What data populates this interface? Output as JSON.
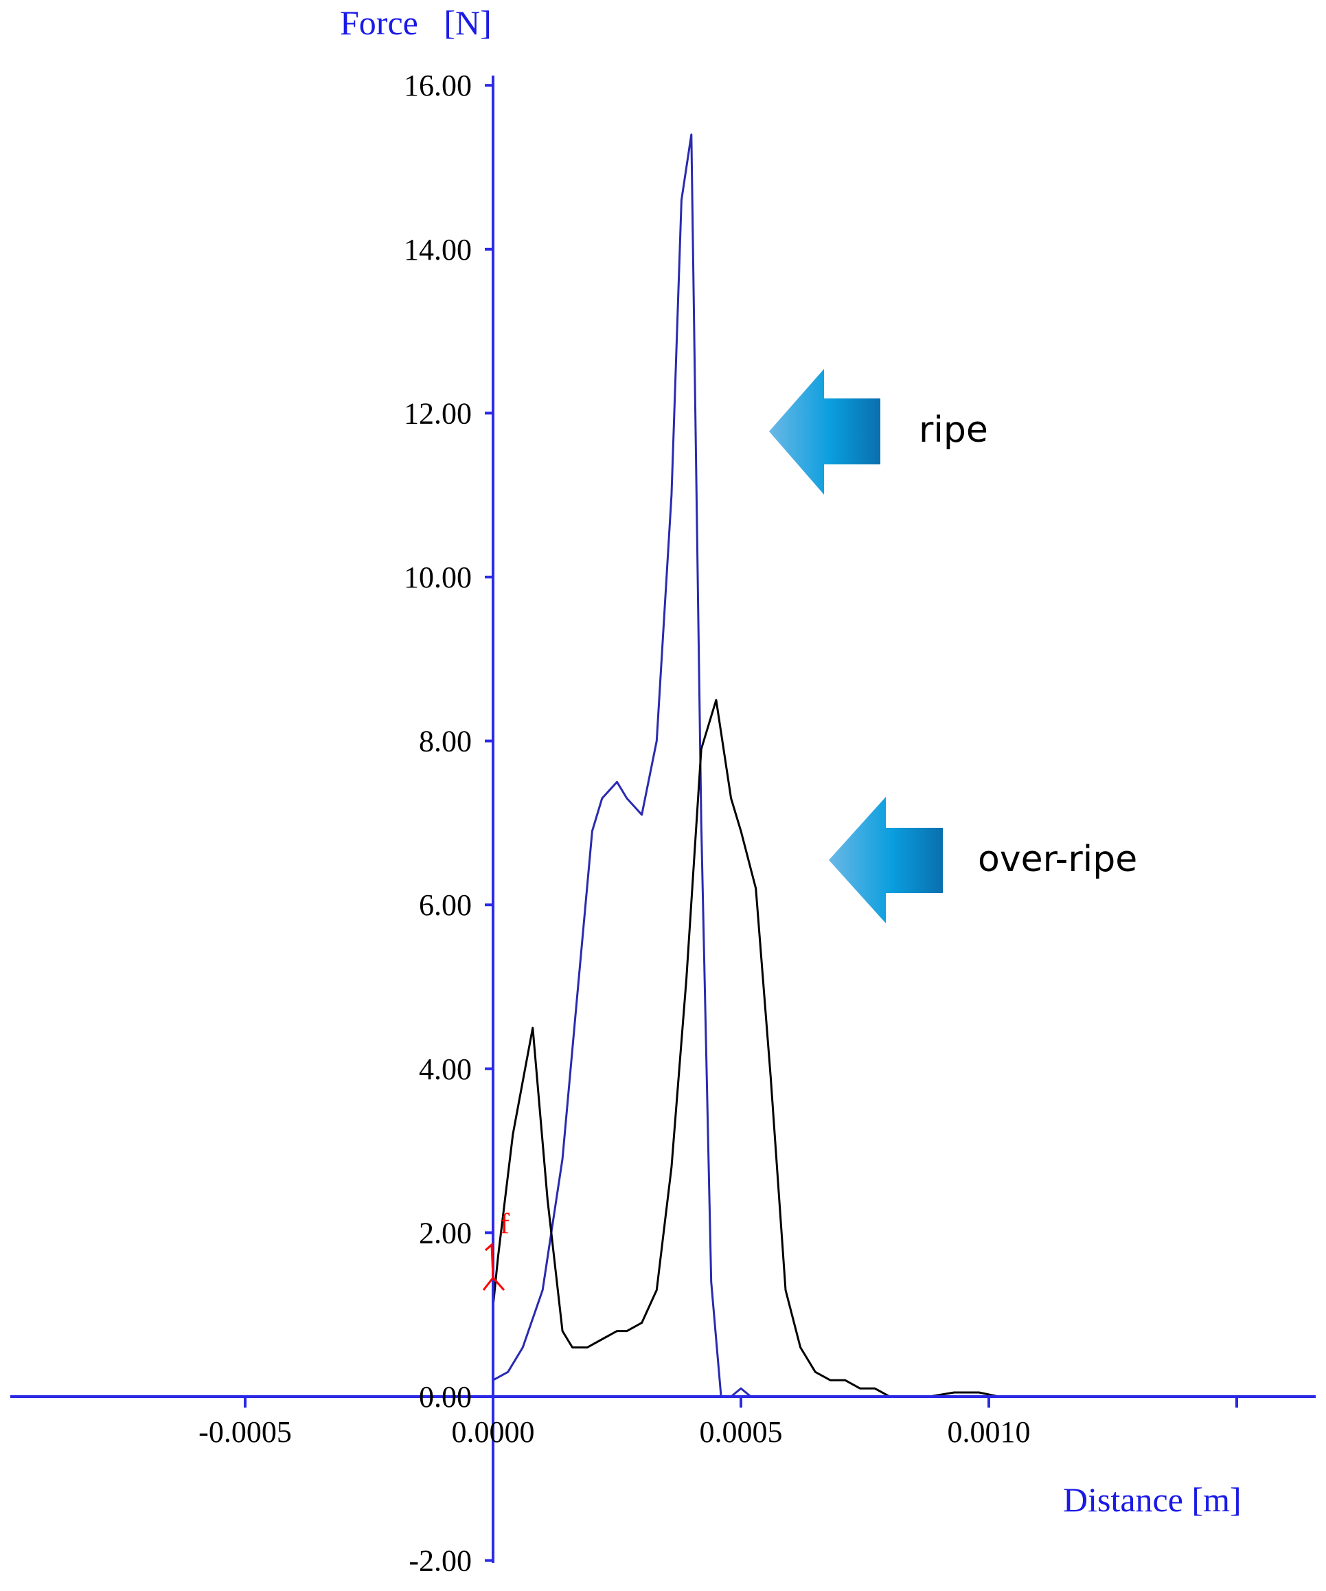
{
  "chart_data": {
    "type": "line",
    "xlabel": "Distance [m]",
    "ylabel": "Force   [N]",
    "xlim": [
      -0.000975,
      0.001665
    ],
    "ylim": [
      -2,
      16
    ],
    "x_ticks": [
      -0.0005,
      0.0,
      0.0005,
      0.001
    ],
    "x_tick_labels": [
      "-0.0005",
      "0.0000",
      "0.0005",
      "0.0010"
    ],
    "y_ticks": [
      -2,
      0,
      2,
      4,
      6,
      8,
      10,
      12,
      14,
      16
    ],
    "y_tick_labels": [
      "-2.00",
      "0.00",
      "2.00",
      "4.00",
      "6.00",
      "8.00",
      "10.00",
      "12.00",
      "14.00",
      "16.00"
    ],
    "grid": false,
    "series": [
      {
        "color": "#2a2ab0",
        "x": [
          0.0,
          3e-05,
          6e-05,
          0.0001,
          0.00014,
          0.00017,
          0.0002,
          0.00022,
          0.00025,
          0.00027,
          0.0003,
          0.00033,
          0.00036,
          0.00038,
          0.0004,
          0.00042,
          0.00044,
          0.00046,
          0.00048,
          0.0005,
          0.00052,
          0.00055
        ],
        "y": [
          0.2,
          0.3,
          0.6,
          1.3,
          2.9,
          4.9,
          6.9,
          7.3,
          7.5,
          7.3,
          7.1,
          8.0,
          11.0,
          14.6,
          15.4,
          7.0,
          1.4,
          0.0,
          0.0,
          0.1,
          0.0,
          0.0
        ]
      },
      {
        "color": "#000000",
        "x": [
          0.0,
          1e-05,
          4e-05,
          8e-05,
          0.00011,
          0.00014,
          0.00016,
          0.00019,
          0.00022,
          0.00025,
          0.00027,
          0.0003,
          0.00033,
          0.00036,
          0.00039,
          0.00042,
          0.00045,
          0.00048,
          0.0005,
          0.00053,
          0.00056,
          0.00059,
          0.00062,
          0.00065,
          0.00068,
          0.00071,
          0.00074,
          0.00077,
          0.0008,
          0.00083,
          0.00088,
          0.00093,
          0.00098,
          0.00102
        ],
        "y": [
          1.1,
          1.7,
          3.2,
          4.5,
          2.4,
          0.8,
          0.6,
          0.6,
          0.7,
          0.8,
          0.8,
          0.9,
          1.3,
          2.8,
          5.1,
          7.9,
          8.5,
          7.3,
          6.9,
          6.2,
          3.9,
          1.3,
          0.6,
          0.3,
          0.2,
          0.2,
          0.1,
          0.1,
          0.0,
          0.0,
          0.0,
          0.05,
          0.05,
          0.0
        ]
      }
    ],
    "annotations": [
      {
        "text": "ripe",
        "arrow_direction": "left",
        "points_to": [
          0.00055,
          11.8
        ]
      },
      {
        "text": "over-ripe",
        "arrow_direction": "left",
        "points_to": [
          0.00068,
          6.6
        ]
      }
    ],
    "marker": {
      "text": "f",
      "color": "#ff0000",
      "x": 0.0,
      "y": 1.5
    }
  }
}
